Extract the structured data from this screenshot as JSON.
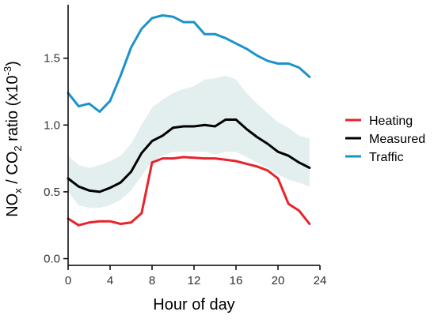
{
  "chart_data": {
    "type": "line",
    "xlabel": "Hour of day",
    "ylabel": {
      "parts": [
        "NO",
        "x",
        " / CO",
        "2",
        " ratio (x10",
        "-3",
        ")"
      ]
    },
    "xlim": [
      0,
      24
    ],
    "ylim": [
      -0.05,
      1.9
    ],
    "x_ticks": [
      0,
      4,
      8,
      12,
      16,
      20,
      24
    ],
    "x_tick_labels": [
      "0",
      "4",
      "8",
      "12",
      "16",
      "20",
      "24"
    ],
    "y_ticks": [
      0.0,
      0.5,
      1.0,
      1.5
    ],
    "y_tick_labels": [
      "0.0",
      "0.5",
      "1.0",
      "1.5"
    ],
    "grid": false,
    "legend_position": "right",
    "x": [
      0,
      1,
      2,
      3,
      4,
      5,
      6,
      7,
      8,
      9,
      10,
      11,
      12,
      13,
      14,
      15,
      16,
      17,
      18,
      19,
      20,
      21,
      22,
      23
    ],
    "series": [
      {
        "name": "Heating",
        "color": "#e8242b",
        "values": [
          0.3,
          0.25,
          0.27,
          0.28,
          0.28,
          0.26,
          0.27,
          0.34,
          0.72,
          0.75,
          0.75,
          0.76,
          0.755,
          0.75,
          0.75,
          0.74,
          0.73,
          0.71,
          0.69,
          0.66,
          0.6,
          0.41,
          0.36,
          0.26
        ]
      },
      {
        "name": "Measured",
        "color": "#000000",
        "values": [
          0.6,
          0.54,
          0.51,
          0.5,
          0.53,
          0.57,
          0.65,
          0.79,
          0.88,
          0.92,
          0.98,
          0.99,
          0.99,
          1.0,
          0.99,
          1.04,
          1.04,
          0.97,
          0.91,
          0.86,
          0.8,
          0.77,
          0.72,
          0.68
        ]
      },
      {
        "name": "Traffic",
        "color": "#1b93c9",
        "values": [
          1.24,
          1.14,
          1.16,
          1.1,
          1.18,
          1.37,
          1.58,
          1.72,
          1.8,
          1.82,
          1.81,
          1.77,
          1.77,
          1.68,
          1.68,
          1.65,
          1.61,
          1.57,
          1.52,
          1.48,
          1.46,
          1.46,
          1.43,
          1.36
        ]
      }
    ],
    "band": {
      "color": "#e3efee",
      "lower": [
        0.5,
        0.4,
        0.38,
        0.38,
        0.4,
        0.44,
        0.51,
        0.62,
        0.73,
        0.77,
        0.8,
        0.8,
        0.8,
        0.8,
        0.78,
        0.8,
        0.8,
        0.76,
        0.72,
        0.68,
        0.63,
        0.59,
        0.57,
        0.54
      ],
      "upper": [
        0.77,
        0.7,
        0.68,
        0.7,
        0.73,
        0.77,
        0.86,
        1.0,
        1.13,
        1.19,
        1.24,
        1.27,
        1.29,
        1.34,
        1.35,
        1.37,
        1.34,
        1.24,
        1.16,
        1.09,
        1.02,
        0.98,
        0.92,
        0.9
      ]
    }
  }
}
